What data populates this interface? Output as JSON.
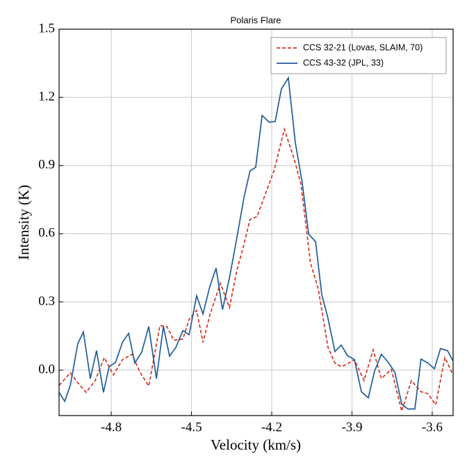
{
  "chart_data": {
    "type": "line",
    "title": "Polaris Flare",
    "xlabel": "Velocity (km/s)",
    "ylabel": "Intensity (K)",
    "xlim": [
      -4.995,
      -3.522
    ],
    "ylim": [
      -0.2,
      1.5
    ],
    "xticks": [
      -4.8,
      -4.5,
      -4.2,
      -3.9,
      -3.6
    ],
    "yticks": [
      {
        "value": 0,
        "label": "0.0"
      },
      0.3,
      0.6,
      0.9,
      1.2,
      1.5
    ],
    "grid": true,
    "legend": "upper right",
    "series": [
      {
        "name": "CCS 32-21 (Lovas, SLAIM, 70)",
        "color": "#d62f1f",
        "dash": true,
        "x": [
          -4.995,
          -4.953,
          -4.925,
          -4.894,
          -4.86,
          -4.826,
          -4.792,
          -4.758,
          -4.722,
          -4.694,
          -4.66,
          -4.618,
          -4.592,
          -4.566,
          -4.532,
          -4.509,
          -4.481,
          -4.457,
          -4.431,
          -4.392,
          -4.358,
          -4.332,
          -4.306,
          -4.281,
          -4.255,
          -4.226,
          -4.19,
          -4.153,
          -4.117,
          -4.091,
          -4.055,
          -4.026,
          -3.99,
          -3.964,
          -3.94,
          -3.917,
          -3.891,
          -3.855,
          -3.821,
          -3.79,
          -3.753,
          -3.714,
          -3.678,
          -3.642,
          -3.616,
          -3.587,
          -3.553,
          -3.522
        ],
        "values": [
          -0.067,
          -0.012,
          -0.055,
          -0.098,
          -0.046,
          0.055,
          -0.021,
          0.046,
          0.07,
          -0.006,
          -0.07,
          0.196,
          0.192,
          0.131,
          0.137,
          0.223,
          0.263,
          0.122,
          0.244,
          0.382,
          0.275,
          0.431,
          0.544,
          0.663,
          0.675,
          0.767,
          0.883,
          1.06,
          0.932,
          0.819,
          0.471,
          0.357,
          0.101,
          0.031,
          0.015,
          0.027,
          0.046,
          -0.046,
          0.089,
          -0.037,
          0.003,
          -0.18,
          -0.046,
          -0.095,
          -0.104,
          -0.153,
          0.055,
          -0.021
        ]
      },
      {
        "name": "CCS 43-32 (JPL, 33)",
        "color": "#1f5a9a",
        "dash": false,
        "x": [
          -4.995,
          -4.974,
          -4.953,
          -4.925,
          -4.904,
          -4.878,
          -4.855,
          -4.829,
          -4.808,
          -4.784,
          -4.758,
          -4.735,
          -4.712,
          -4.686,
          -4.66,
          -4.631,
          -4.605,
          -4.582,
          -4.558,
          -4.532,
          -4.509,
          -4.481,
          -4.457,
          -4.431,
          -4.408,
          -4.384,
          -4.358,
          -4.332,
          -4.304,
          -4.281,
          -4.26,
          -4.236,
          -4.21,
          -4.187,
          -4.164,
          -4.138,
          -4.112,
          -4.086,
          -4.062,
          -4.036,
          -4.013,
          -3.99,
          -3.964,
          -3.94,
          -3.917,
          -3.891,
          -3.865,
          -3.839,
          -3.816,
          -3.79,
          -3.764,
          -3.74,
          -3.714,
          -3.691,
          -3.665,
          -3.642,
          -3.616,
          -3.592,
          -3.569,
          -3.543,
          -3.522
        ],
        "values": [
          -0.098,
          -0.137,
          -0.067,
          0.116,
          0.168,
          -0.037,
          0.086,
          -0.098,
          0.015,
          0.034,
          0.122,
          0.162,
          0.031,
          0.079,
          0.192,
          -0.037,
          0.192,
          0.061,
          0.101,
          0.174,
          0.156,
          0.327,
          0.247,
          0.37,
          0.449,
          0.266,
          0.406,
          0.571,
          0.758,
          0.877,
          0.892,
          1.121,
          1.091,
          1.094,
          1.237,
          1.286,
          1.002,
          0.825,
          0.599,
          0.565,
          0.333,
          0.229,
          0.082,
          0.11,
          0.064,
          0.046,
          -0.095,
          -0.122,
          -0.006,
          0.07,
          0.034,
          -0.009,
          -0.15,
          -0.171,
          -0.171,
          0.049,
          0.031,
          0.006,
          0.095,
          0.086,
          0.04
        ]
      }
    ]
  }
}
